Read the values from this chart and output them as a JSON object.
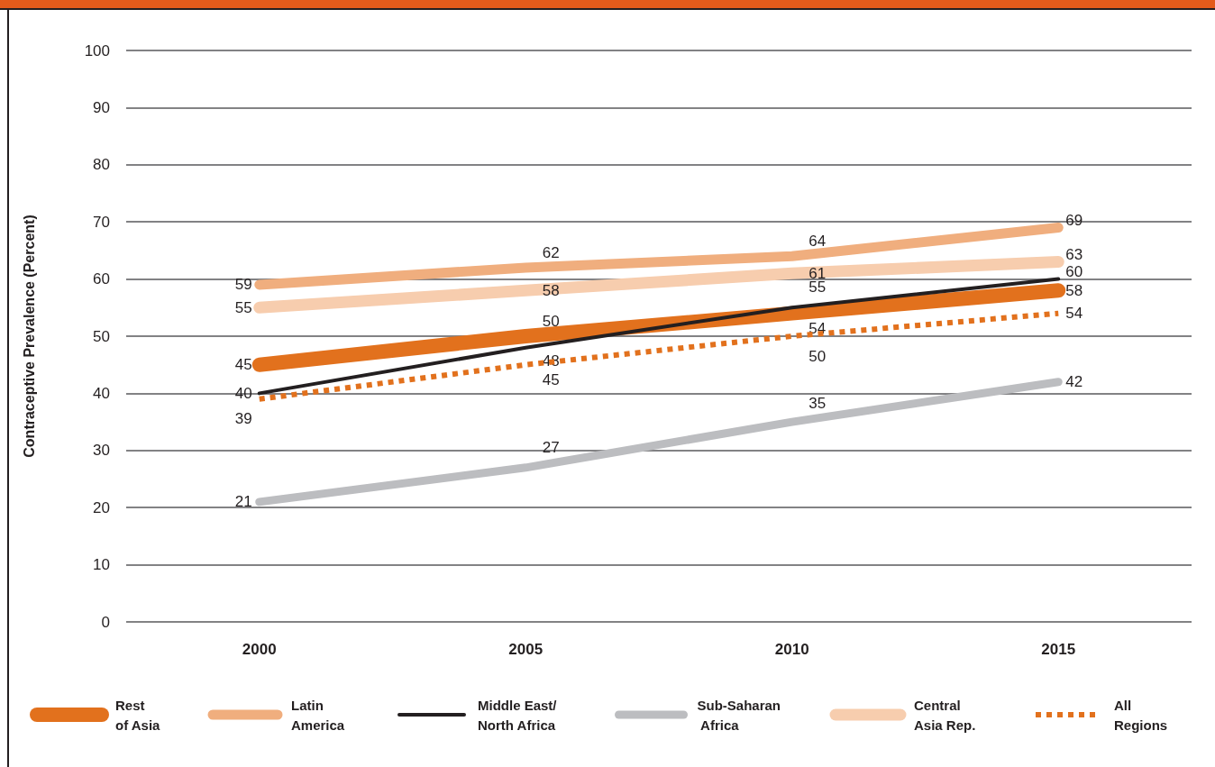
{
  "chart_data": {
    "type": "line",
    "ylabel": "Contraceptive Prevalence (Percent)",
    "categories": [
      "2000",
      "2005",
      "2010",
      "2015"
    ],
    "series": [
      {
        "name": "Rest of Asia",
        "color": "#e2711d",
        "values": [
          45,
          50,
          54,
          58
        ]
      },
      {
        "name": "Latin America",
        "color": "#f0ae7e",
        "values": [
          59,
          62,
          64,
          69
        ]
      },
      {
        "name": "Middle East/North Africa",
        "color": "#231f20",
        "values": [
          40,
          48,
          55,
          60
        ]
      },
      {
        "name": "Sub-Saharan Africa",
        "color": "#bcbdc0",
        "values": [
          21,
          27,
          35,
          42
        ]
      },
      {
        "name": "Central Asia Rep.",
        "color": "#f7cdae",
        "values": [
          55,
          58,
          61,
          63
        ]
      },
      {
        "name": "All Regions",
        "color": "#e2711d",
        "values": [
          39,
          45,
          50,
          54
        ],
        "line_style": "dotted"
      }
    ],
    "ylim": [
      0,
      100
    ],
    "yticks": [
      0,
      10,
      20,
      30,
      40,
      50,
      60,
      70,
      80,
      90,
      100
    ],
    "grid": "y",
    "legend": "bottom",
    "data_labels": true,
    "marker": "none",
    "line_style": "solid"
  }
}
